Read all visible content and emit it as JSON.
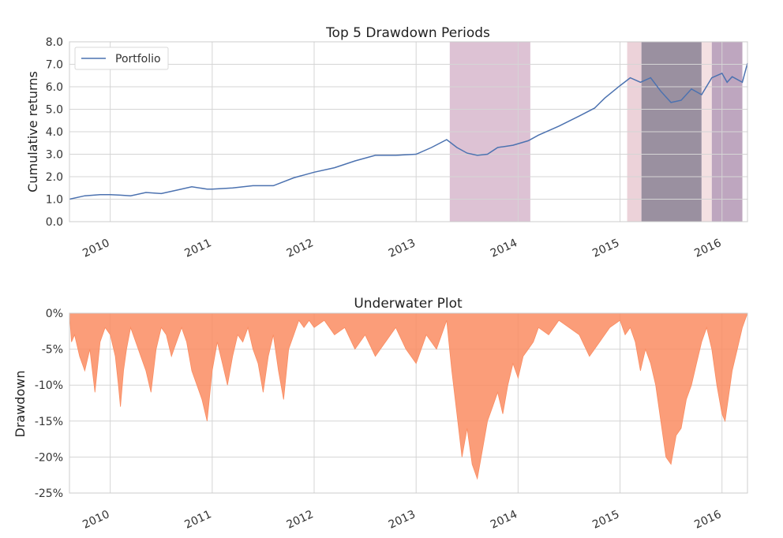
{
  "chart_data": [
    {
      "type": "line",
      "title": "Top 5 Drawdown Periods",
      "xlabel": "",
      "ylabel": "Cumulative returns",
      "xlim": [
        2009.6,
        2016.25
      ],
      "ylim": [
        0.0,
        8.0
      ],
      "x_tick_values": [
        2010,
        2011,
        2012,
        2013,
        2014,
        2015,
        2016
      ],
      "x_tick_labels": [
        "2010",
        "2011",
        "2012",
        "2013",
        "2014",
        "2015",
        "2016"
      ],
      "y_tick_values": [
        0,
        1,
        2,
        3,
        4,
        5,
        6,
        7,
        8
      ],
      "y_tick_labels": [
        "0.0",
        "1.0",
        "2.0",
        "3.0",
        "4.0",
        "5.0",
        "6.0",
        "7.0",
        "8.0"
      ],
      "legend": {
        "entries": [
          "Portfolio"
        ],
        "placement": "top-left"
      },
      "series": [
        {
          "name": "Portfolio",
          "color": "#4c72b0",
          "x": [
            2009.6,
            2009.75,
            2009.9,
            2010.0,
            2010.1,
            2010.2,
            2010.35,
            2010.5,
            2010.65,
            2010.8,
            2010.95,
            2011.0,
            2011.2,
            2011.4,
            2011.6,
            2011.8,
            2012.0,
            2012.2,
            2012.4,
            2012.6,
            2012.8,
            2013.0,
            2013.15,
            2013.3,
            2013.4,
            2013.5,
            2013.6,
            2013.7,
            2013.8,
            2013.95,
            2014.1,
            2014.2,
            2014.4,
            2014.6,
            2014.75,
            2014.85,
            2015.0,
            2015.1,
            2015.2,
            2015.3,
            2015.4,
            2015.5,
            2015.6,
            2015.7,
            2015.8,
            2015.9,
            2016.0,
            2016.05,
            2016.1,
            2016.2,
            2016.25
          ],
          "y": [
            1.0,
            1.15,
            1.2,
            1.2,
            1.18,
            1.15,
            1.3,
            1.25,
            1.4,
            1.55,
            1.45,
            1.45,
            1.5,
            1.6,
            1.6,
            1.95,
            2.2,
            2.4,
            2.7,
            2.95,
            2.95,
            3.0,
            3.3,
            3.65,
            3.3,
            3.05,
            2.95,
            3.0,
            3.3,
            3.4,
            3.6,
            3.85,
            4.25,
            4.7,
            5.05,
            5.5,
            6.05,
            6.4,
            6.2,
            6.4,
            5.8,
            5.3,
            5.4,
            5.9,
            5.65,
            6.4,
            6.6,
            6.2,
            6.45,
            6.2,
            7.05
          ]
        }
      ],
      "shaded_periods": [
        {
          "x_start": 2013.33,
          "x_end": 2014.12,
          "color": "#ddc2d4"
        },
        {
          "x_start": 2015.07,
          "x_end": 2015.21,
          "color": "#ecd2d9"
        },
        {
          "x_start": 2015.21,
          "x_end": 2015.8,
          "color": "#9a90a0"
        },
        {
          "x_start": 2015.8,
          "x_end": 2015.9,
          "color": "#f4e0e2"
        },
        {
          "x_start": 2015.9,
          "x_end": 2016.2,
          "color": "#bea6bf"
        }
      ]
    },
    {
      "type": "area",
      "title": "Underwater Plot",
      "xlabel": "",
      "ylabel": "Drawdown",
      "xlim": [
        2009.6,
        2016.25
      ],
      "ylim": [
        -25,
        0
      ],
      "x_tick_values": [
        2010,
        2011,
        2012,
        2013,
        2014,
        2015,
        2016
      ],
      "x_tick_labels": [
        "2010",
        "2011",
        "2012",
        "2013",
        "2014",
        "2015",
        "2016"
      ],
      "y_tick_values": [
        0,
        -5,
        -10,
        -15,
        -20,
        -25
      ],
      "y_tick_labels": [
        "0%",
        "-5%",
        "-10%",
        "-15%",
        "-20%",
        "-25%"
      ],
      "series": [
        {
          "name": "Drawdown",
          "color": "#fa8c61",
          "x": [
            2009.6,
            2009.62,
            2009.65,
            2009.7,
            2009.75,
            2009.8,
            2009.85,
            2009.9,
            2009.95,
            2010.0,
            2010.05,
            2010.08,
            2010.1,
            2010.13,
            2010.16,
            2010.2,
            2010.25,
            2010.3,
            2010.35,
            2010.4,
            2010.45,
            2010.5,
            2010.55,
            2010.6,
            2010.65,
            2010.7,
            2010.75,
            2010.8,
            2010.85,
            2010.9,
            2010.95,
            2011.0,
            2011.05,
            2011.1,
            2011.15,
            2011.2,
            2011.25,
            2011.3,
            2011.35,
            2011.4,
            2011.45,
            2011.5,
            2011.55,
            2011.6,
            2011.65,
            2011.7,
            2011.75,
            2011.8,
            2011.85,
            2011.9,
            2011.95,
            2012.0,
            2012.1,
            2012.2,
            2012.3,
            2012.4,
            2012.5,
            2012.6,
            2012.7,
            2012.8,
            2012.9,
            2013.0,
            2013.1,
            2013.2,
            2013.3,
            2013.35,
            2013.4,
            2013.45,
            2013.5,
            2013.55,
            2013.6,
            2013.65,
            2013.7,
            2013.75,
            2013.8,
            2013.85,
            2013.9,
            2013.95,
            2014.0,
            2014.05,
            2014.1,
            2014.15,
            2014.2,
            2014.3,
            2014.4,
            2014.5,
            2014.6,
            2014.7,
            2014.8,
            2014.9,
            2015.0,
            2015.05,
            2015.1,
            2015.15,
            2015.2,
            2015.25,
            2015.3,
            2015.35,
            2015.4,
            2015.45,
            2015.5,
            2015.55,
            2015.6,
            2015.65,
            2015.7,
            2015.75,
            2015.8,
            2015.85,
            2015.9,
            2015.95,
            2016.0,
            2016.03,
            2016.06,
            2016.1,
            2016.15,
            2016.2,
            2016.25
          ],
          "y": [
            0,
            -4,
            -3,
            -6,
            -8,
            -5,
            -11,
            -4,
            -2,
            -3,
            -6,
            -10,
            -13,
            -8,
            -5,
            -2,
            -4,
            -6,
            -8,
            -11,
            -5,
            -2,
            -3,
            -6,
            -4,
            -2,
            -4,
            -8,
            -10,
            -12,
            -15,
            -8,
            -4,
            -7,
            -10,
            -6,
            -3,
            -4,
            -2,
            -5,
            -7,
            -11,
            -6,
            -3,
            -8,
            -12,
            -5,
            -3,
            -1,
            -2,
            -1,
            -2,
            -1,
            -3,
            -2,
            -5,
            -3,
            -6,
            -4,
            -2,
            -5,
            -7,
            -3,
            -5,
            -1,
            -8,
            -14,
            -20,
            -16,
            -21,
            -23,
            -19,
            -15,
            -13,
            -11,
            -14,
            -10,
            -7,
            -9,
            -6,
            -5,
            -4,
            -2,
            -3,
            -1,
            -2,
            -3,
            -6,
            -4,
            -2,
            -1,
            -3,
            -2,
            -4,
            -8,
            -5,
            -7,
            -10,
            -15,
            -20,
            -21,
            -17,
            -16,
            -12,
            -10,
            -7,
            -4,
            -2,
            -5,
            -10,
            -14,
            -15,
            -12,
            -8,
            -5,
            -2,
            0
          ]
        }
      ]
    }
  ]
}
